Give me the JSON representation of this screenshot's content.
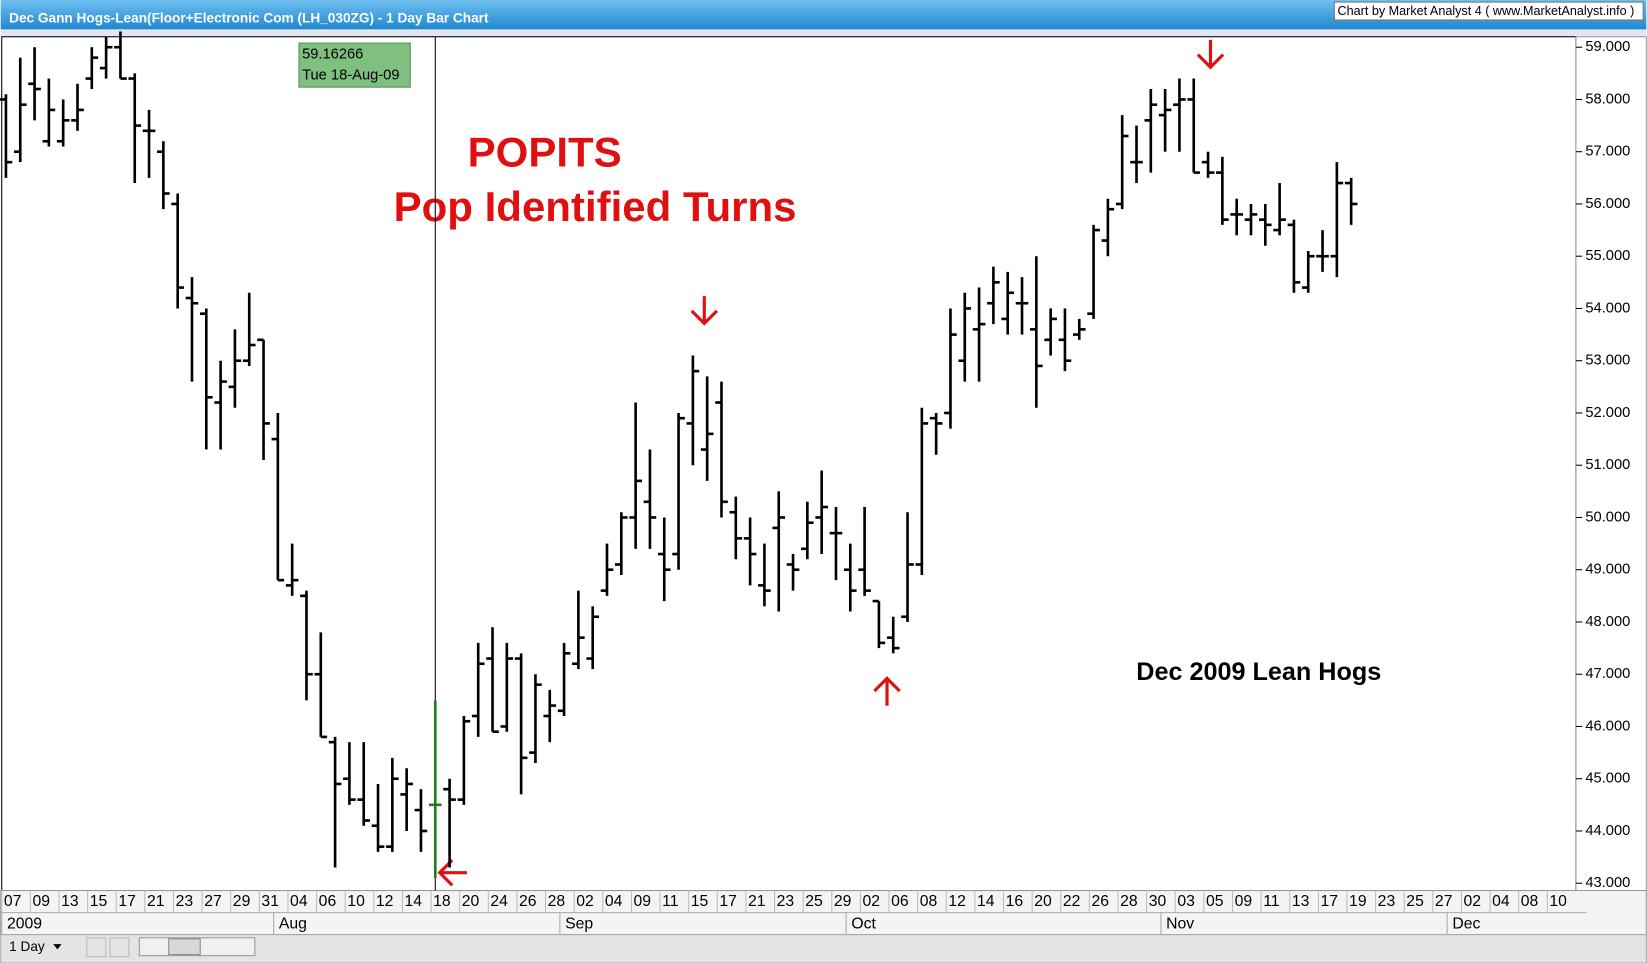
{
  "window": {
    "title": "Dec Gann Hogs-Lean(Floor+Electronic Com (LH_030ZG) - 1 Day Bar Chart",
    "credit": "Chart by Market Analyst 4 ( www.MarketAnalyst.info )",
    "interval": "1 Day"
  },
  "chart_data": {
    "type": "ohlc",
    "color": "#000000",
    "highlight_color": "#1e7b1e",
    "annotations": [
      "POPITS",
      "Pop Identified Turns",
      "Dec 2009 Lean Hogs"
    ],
    "tooltip": {
      "value": "59.16266",
      "date": "Tue 18-Aug-09"
    },
    "categories": [
      "07",
      null,
      "09",
      null,
      "13",
      null,
      "15",
      null,
      "17",
      null,
      "21",
      null,
      "23",
      null,
      "27",
      null,
      "29",
      null,
      "31",
      null,
      "04",
      null,
      "06",
      null,
      "10",
      null,
      "12",
      null,
      "14",
      null,
      "18",
      null,
      "20",
      null,
      "24",
      null,
      "26",
      null,
      "28",
      null,
      "02",
      null,
      "04",
      null,
      "09",
      null,
      "11",
      null,
      "15",
      null,
      "17",
      null,
      "21",
      null,
      "23",
      null,
      "25",
      null,
      "29",
      null,
      "02",
      null,
      "06",
      null,
      "08",
      null,
      "12",
      null,
      "14",
      null,
      "16",
      null,
      "20",
      null,
      "22",
      null,
      "26",
      null,
      "28",
      null,
      "30",
      null,
      "03",
      null,
      "05",
      null,
      "09",
      null,
      "11",
      null,
      "13",
      null,
      "17",
      null,
      "19",
      null,
      "23",
      null,
      "25",
      null,
      "27",
      null,
      "02",
      null,
      "04",
      null,
      "08",
      null,
      "10",
      null
    ],
    "months": [
      {
        "label": "2009",
        "index": 0
      },
      {
        "label": "Aug",
        "index": 19
      },
      {
        "label": "Sep",
        "index": 39
      },
      {
        "label": "Oct",
        "index": 59
      },
      {
        "label": "Nov",
        "index": 81
      },
      {
        "label": "Dec",
        "index": 101
      }
    ],
    "open": [
      58.0,
      57.0,
      58.3,
      57.2,
      57.2,
      57.6,
      58.4,
      58.6,
      59.0,
      58.4,
      57.4,
      57.0,
      56.0,
      54.2,
      53.9,
      52.2,
      52.5,
      53.0,
      53.4,
      51.5,
      48.7,
      48.5,
      47.0,
      45.7,
      45.0,
      44.6,
      44.1,
      43.7,
      44.7,
      44.4,
      44.5,
      44.8,
      44.6,
      46.2,
      47.3,
      46.0,
      47.3,
      45.5,
      46.2,
      46.3,
      47.2,
      47.3,
      48.6,
      49.1,
      50.0,
      50.3,
      49.3,
      49.3,
      51.8,
      51.3,
      52.2,
      50.1,
      49.6,
      48.7,
      49.8,
      49.1,
      49.4,
      50.0,
      49.7,
      49.0,
      49.0,
      48.4,
      47.7,
      48.1,
      49.1,
      51.9,
      52.0,
      53.0,
      53.6,
      54.1,
      53.8,
      54.1,
      53.6,
      53.4,
      53.4,
      53.5,
      53.9,
      55.3,
      56.0,
      56.8,
      57.6,
      57.7,
      57.9,
      58.0,
      56.8,
      56.6,
      55.8,
      55.7,
      55.7,
      55.5,
      55.6,
      54.4,
      55.0,
      55.0,
      56.4,
      null,
      null,
      null,
      null,
      null,
      null,
      null,
      null,
      null,
      null,
      null,
      null,
      null,
      null,
      null
    ],
    "high": [
      58.1,
      58.8,
      59.0,
      58.4,
      58.0,
      58.3,
      59.0,
      59.2,
      59.3,
      58.5,
      57.8,
      57.2,
      56.2,
      54.6,
      54.0,
      53.0,
      53.6,
      54.3,
      53.4,
      52.0,
      49.5,
      48.6,
      47.8,
      45.8,
      45.7,
      45.7,
      44.9,
      45.4,
      45.2,
      44.8,
      46.5,
      45.0,
      46.2,
      47.6,
      47.9,
      47.6,
      47.4,
      47.0,
      46.7,
      47.6,
      48.6,
      48.3,
      49.5,
      50.1,
      52.2,
      51.3,
      50.0,
      52.0,
      53.1,
      52.7,
      52.6,
      50.4,
      50.0,
      49.5,
      50.5,
      49.3,
      50.3,
      50.9,
      50.2,
      49.5,
      50.2,
      48.4,
      48.1,
      50.1,
      52.1,
      52.0,
      54.0,
      54.3,
      54.4,
      54.8,
      54.7,
      54.6,
      55.0,
      54.0,
      54.0,
      53.8,
      55.6,
      56.1,
      57.7,
      57.5,
      58.2,
      58.2,
      58.4,
      58.4,
      57.0,
      56.9,
      56.1,
      56.0,
      56.0,
      56.4,
      55.7,
      55.1,
      55.5,
      56.8,
      56.5,
      null,
      null,
      null,
      null,
      null,
      null,
      null,
      null,
      null,
      null,
      null,
      null,
      null,
      null,
      null
    ],
    "low": [
      56.5,
      56.8,
      57.6,
      57.1,
      57.1,
      57.4,
      58.2,
      58.4,
      58.4,
      56.4,
      56.5,
      55.9,
      54.0,
      52.6,
      51.3,
      51.3,
      52.1,
      52.9,
      51.1,
      48.8,
      48.5,
      46.5,
      45.8,
      43.3,
      44.5,
      44.1,
      43.6,
      43.6,
      44.0,
      43.6,
      43.1,
      43.3,
      44.5,
      45.8,
      45.9,
      45.9,
      44.7,
      45.3,
      45.7,
      46.2,
      47.1,
      47.1,
      48.5,
      48.9,
      49.4,
      49.4,
      48.4,
      49.0,
      51.0,
      50.7,
      50.0,
      49.2,
      48.7,
      48.3,
      48.2,
      48.6,
      49.2,
      49.3,
      48.8,
      48.2,
      48.5,
      47.5,
      47.4,
      48.0,
      48.9,
      51.2,
      51.7,
      52.6,
      52.6,
      53.7,
      53.5,
      53.5,
      52.1,
      53.1,
      52.8,
      53.4,
      53.8,
      55.0,
      55.9,
      56.4,
      56.6,
      57.0,
      57.0,
      56.6,
      56.5,
      55.6,
      55.4,
      55.4,
      55.2,
      55.4,
      54.3,
      54.3,
      54.7,
      54.6,
      55.6,
      null,
      null,
      null,
      null,
      null,
      null,
      null,
      null,
      null,
      null,
      null,
      null,
      null,
      null,
      null
    ],
    "close": [
      56.8,
      57.9,
      58.2,
      57.8,
      57.6,
      57.8,
      58.8,
      59.0,
      58.4,
      57.5,
      57.4,
      56.2,
      54.4,
      54.1,
      52.3,
      52.6,
      53.0,
      53.3,
      51.8,
      48.8,
      48.8,
      47.0,
      45.8,
      44.9,
      44.6,
      44.2,
      43.7,
      45.0,
      44.9,
      44.0,
      44.5,
      44.6,
      46.1,
      47.2,
      45.9,
      47.3,
      45.4,
      46.8,
      46.4,
      47.4,
      47.7,
      48.1,
      49.0,
      50.0,
      50.7,
      50.0,
      49.0,
      51.9,
      52.8,
      51.6,
      50.3,
      49.6,
      49.3,
      48.6,
      50.0,
      49.0,
      49.9,
      50.2,
      49.7,
      48.6,
      48.6,
      47.6,
      47.5,
      49.1,
      51.8,
      51.8,
      53.5,
      54.0,
      53.7,
      54.5,
      54.3,
      54.1,
      52.9,
      53.8,
      53.0,
      53.6,
      55.5,
      55.9,
      57.3,
      56.8,
      57.9,
      57.8,
      58.0,
      56.6,
      56.6,
      55.7,
      55.8,
      55.8,
      55.6,
      55.7,
      54.5,
      55.0,
      55.0,
      56.4,
      56.0,
      null,
      null,
      null,
      null,
      null,
      null,
      null,
      null,
      null,
      null,
      null,
      null,
      null,
      null,
      null
    ],
    "ylim": [
      42.86,
      59.2
    ],
    "yticks": [
      {
        "value": 43,
        "label": "43.000"
      },
      {
        "value": 44,
        "label": "44.000"
      },
      {
        "value": 45,
        "label": "45.000"
      },
      {
        "value": 46,
        "label": "46.000"
      },
      {
        "value": 47,
        "label": "47.000"
      },
      {
        "value": 48,
        "label": "48.000"
      },
      {
        "value": 49,
        "label": "49.000"
      },
      {
        "value": 50,
        "label": "50.000"
      },
      {
        "value": 51,
        "label": "51.000"
      },
      {
        "value": 52,
        "label": "52.000"
      },
      {
        "value": 53,
        "label": "53.000"
      },
      {
        "value": 54,
        "label": "54.000"
      },
      {
        "value": 55,
        "label": "55.000"
      },
      {
        "value": 56,
        "label": "56.000"
      },
      {
        "value": 57,
        "label": "57.000"
      },
      {
        "value": 58,
        "label": "58.000"
      },
      {
        "value": 59,
        "label": "59.000"
      }
    ]
  }
}
